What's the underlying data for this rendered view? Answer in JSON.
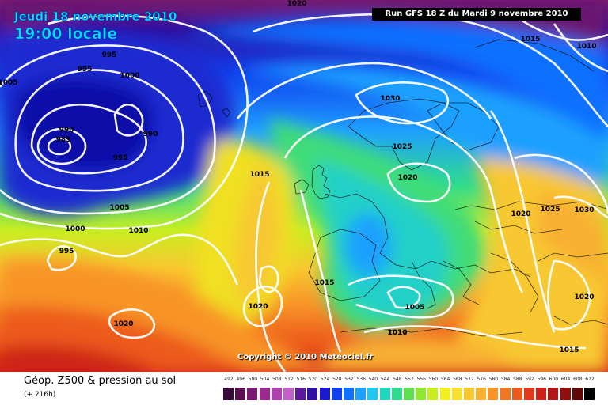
{
  "header": {
    "date": "Jeudi 18 novembre 2010",
    "time": "19:00 locale",
    "run": "Run GFS 18 Z du Mardi 9 novembre 2010"
  },
  "copyright": "Copyright © 2010 Meteociel.fr",
  "legend": {
    "title": "Géop. Z500 & pression au sol",
    "subtitle": "(+ 216h)",
    "scale": [
      {
        "v": "492",
        "c": "#3a0a3a"
      },
      {
        "v": "496",
        "c": "#5a1050"
      },
      {
        "v": "500",
        "c": "#7a1a70"
      },
      {
        "v": "504",
        "c": "#9a2a90"
      },
      {
        "v": "508",
        "c": "#b040b0"
      },
      {
        "v": "512",
        "c": "#c060c8"
      },
      {
        "v": "516",
        "c": "#5a1a9a"
      },
      {
        "v": "520",
        "c": "#3010a0"
      },
      {
        "v": "524",
        "c": "#1a1acc"
      },
      {
        "v": "528",
        "c": "#1040ee"
      },
      {
        "v": "532",
        "c": "#1070ff"
      },
      {
        "v": "536",
        "c": "#1ea0ff"
      },
      {
        "v": "540",
        "c": "#20c8f0"
      },
      {
        "v": "544",
        "c": "#20d8c0"
      },
      {
        "v": "548",
        "c": "#30dc8c"
      },
      {
        "v": "552",
        "c": "#60e050"
      },
      {
        "v": "556",
        "c": "#90e830"
      },
      {
        "v": "560",
        "c": "#c8ee20"
      },
      {
        "v": "564",
        "c": "#f0f020"
      },
      {
        "v": "568",
        "c": "#f8e030"
      },
      {
        "v": "572",
        "c": "#f8c830"
      },
      {
        "v": "576",
        "c": "#f8b030"
      },
      {
        "v": "580",
        "c": "#f89428"
      },
      {
        "v": "584",
        "c": "#f07820"
      },
      {
        "v": "588",
        "c": "#ec5a1c"
      },
      {
        "v": "592",
        "c": "#e03a18"
      },
      {
        "v": "596",
        "c": "#cc2018"
      },
      {
        "v": "600",
        "c": "#b01818"
      },
      {
        "v": "604",
        "c": "#901010"
      },
      {
        "v": "608",
        "c": "#600808"
      },
      {
        "v": "612",
        "c": "#000000"
      }
    ]
  },
  "isobar_labels": [
    {
      "text": "1020"
    },
    {
      "text": "995"
    },
    {
      "text": "995"
    },
    {
      "text": "1005"
    },
    {
      "text": "1000"
    },
    {
      "text": "990"
    },
    {
      "text": "985"
    },
    {
      "text": "990"
    },
    {
      "text": "995"
    },
    {
      "text": "1005"
    },
    {
      "text": "1000"
    },
    {
      "text": "995"
    },
    {
      "text": "1010"
    },
    {
      "text": "1015"
    },
    {
      "text": "1020"
    },
    {
      "text": "1020"
    },
    {
      "text": "1015"
    },
    {
      "text": "1010"
    },
    {
      "text": "1030"
    },
    {
      "text": "1025"
    },
    {
      "text": "1020"
    },
    {
      "text": "1015"
    },
    {
      "text": "1010"
    },
    {
      "text": "1005"
    },
    {
      "text": "1010"
    },
    {
      "text": "1020"
    },
    {
      "text": "1025"
    },
    {
      "text": "1030"
    },
    {
      "text": "1020"
    },
    {
      "text": "1015"
    }
  ]
}
